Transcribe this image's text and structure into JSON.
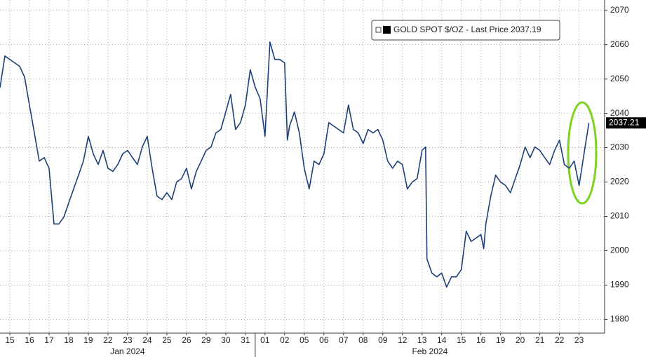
{
  "chart_data": {
    "type": "line",
    "series": [
      {
        "name": "GOLD SPOT $/OZ - Last Price 2037.19",
        "color": "#1d3f78",
        "x": [
          0,
          0.25,
          0.5,
          0.75,
          1,
          1.25,
          1.5,
          1.75,
          2,
          2.25,
          2.5,
          2.75,
          3,
          3.25,
          3.5,
          3.75,
          4,
          4.25,
          4.5,
          4.75,
          5,
          5.25,
          5.5,
          5.75,
          6,
          6.25,
          6.5,
          6.75,
          7,
          7.25,
          7.5,
          7.75,
          8,
          8.25,
          8.5,
          8.75,
          9,
          9.25,
          9.5,
          9.75,
          10,
          10.25,
          10.5,
          10.75,
          11,
          11.25,
          11.5,
          11.75,
          12,
          12.25,
          12.5,
          12.75,
          13,
          13.25,
          13.5,
          13.75,
          14,
          14.25,
          14.5,
          14.64,
          14.75,
          15,
          15.25,
          15.5,
          15.75,
          16,
          16.25,
          16.5,
          16.75,
          17,
          17.25,
          17.5,
          17.75,
          18,
          18.25,
          18.5,
          18.75,
          19,
          19.25,
          19.5,
          19.75,
          20,
          20.25,
          20.5,
          20.75,
          21,
          21.25,
          21.5,
          21.68,
          21.75,
          22,
          22.25,
          22.5,
          22.75,
          23,
          23.25,
          23.5,
          23.75,
          24,
          24.25,
          24.5,
          24.64,
          24.75,
          25,
          25.25,
          25.5,
          25.75,
          26,
          26.25,
          26.5,
          26.75,
          27,
          27.25,
          27.5,
          27.75,
          28,
          28.25,
          28.5,
          28.75,
          29,
          29.25,
          29.5,
          29.75,
          30
        ],
        "values": [
          2047.5,
          2056.7,
          2055.7,
          2054.7,
          2053.7,
          2050.6,
          2042.4,
          2034.3,
          2026.1,
          2027.1,
          2024,
          2007.8,
          2007.8,
          2009.8,
          2013.9,
          2018,
          2022,
          2026.1,
          2033.3,
          2028.2,
          2025.1,
          2029.2,
          2024,
          2023.1,
          2025.1,
          2028.2,
          2029.2,
          2027.1,
          2025.1,
          2030.2,
          2033.3,
          2024,
          2015.9,
          2014.9,
          2016.9,
          2014.9,
          2020,
          2021,
          2024,
          2018,
          2023.1,
          2026.1,
          2029.2,
          2030.2,
          2034.3,
          2035.3,
          2040.4,
          2045.5,
          2035.3,
          2037.3,
          2042.4,
          2052.7,
          2047.6,
          2044.3,
          2033.3,
          2060.8,
          2055.7,
          2055.7,
          2054.7,
          2032.2,
          2036.3,
          2040.4,
          2034.3,
          2024,
          2018,
          2026.1,
          2025.1,
          2028.2,
          2037.3,
          2036.3,
          2035.3,
          2034.3,
          2042.4,
          2035.3,
          2034.3,
          2031.2,
          2035.3,
          2034.3,
          2035.3,
          2032.2,
          2026.1,
          2024,
          2026.1,
          2025.1,
          2018,
          2020,
          2021,
          2029.2,
          2030.2,
          1997.6,
          1993.5,
          1992.4,
          1993.5,
          1989.4,
          1992.4,
          1992.4,
          1994.5,
          2005.7,
          2002.7,
          2003.7,
          2004.7,
          2000.6,
          2007.8,
          2015.9,
          2022,
          2020,
          2019,
          2016.9,
          2021,
          2025.1,
          2030.2,
          2027.1,
          2030.2,
          2029.2,
          2027.1,
          2025.1,
          2029.2,
          2032.2,
          2025.1,
          2024,
          2026.1,
          2019,
          2028.2,
          2037.2
        ]
      }
    ],
    "last_value_label": 2037.21,
    "xlim": [
      0,
      30.8
    ],
    "xticks": [
      {
        "value": 0.5,
        "label": "15"
      },
      {
        "value": 1.5,
        "label": "16"
      },
      {
        "value": 2.5,
        "label": "17"
      },
      {
        "value": 3.5,
        "label": "18"
      },
      {
        "value": 4.5,
        "label": "19"
      },
      {
        "value": 5.5,
        "label": "22"
      },
      {
        "value": 6.5,
        "label": "23"
      },
      {
        "value": 7.5,
        "label": "24"
      },
      {
        "value": 8.5,
        "label": "25"
      },
      {
        "value": 9.5,
        "label": "26"
      },
      {
        "value": 10.5,
        "label": "29"
      },
      {
        "value": 11.5,
        "label": "30"
      },
      {
        "value": 12.5,
        "label": "31"
      },
      {
        "value": 13.5,
        "label": "01"
      },
      {
        "value": 14.5,
        "label": "02"
      },
      {
        "value": 15.5,
        "label": "05"
      },
      {
        "value": 16.5,
        "label": "06"
      },
      {
        "value": 17.5,
        "label": "07"
      },
      {
        "value": 18.5,
        "label": "08"
      },
      {
        "value": 19.5,
        "label": "09"
      },
      {
        "value": 20.5,
        "label": "12"
      },
      {
        "value": 21.5,
        "label": "13"
      },
      {
        "value": 22.5,
        "label": "14"
      },
      {
        "value": 23.5,
        "label": "15"
      },
      {
        "value": 24.5,
        "label": "16"
      },
      {
        "value": 25.5,
        "label": "19"
      },
      {
        "value": 26.5,
        "label": "20"
      },
      {
        "value": 27.5,
        "label": "21"
      },
      {
        "value": 28.5,
        "label": "22"
      },
      {
        "value": 29.5,
        "label": "23"
      }
    ],
    "xgroups": [
      {
        "label": "Jan 2024",
        "start": 0,
        "end": 13
      },
      {
        "label": "Feb 2024",
        "start": 13,
        "end": 30.8
      }
    ],
    "ylim": [
      1976,
      2073
    ],
    "yticks": [
      1980,
      1990,
      2000,
      2010,
      2020,
      2030,
      2040,
      2050,
      2060,
      2070
    ],
    "grid": true
  }
}
